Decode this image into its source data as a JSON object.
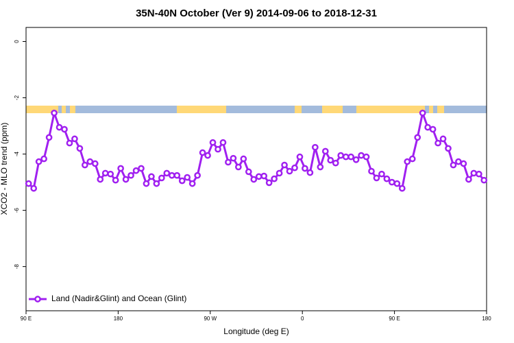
{
  "chart_data": {
    "type": "line",
    "title": "35N-40N October (Ver 9)   2014-09-06 to 2018-12-31",
    "xlabel": "Longitude (deg E)",
    "ylabel": "XCO2 - MLO trend (ppm)",
    "x": [
      92.5,
      97.5,
      102.5,
      107.5,
      112.5,
      117.5,
      122.5,
      127.5,
      132.5,
      137.5,
      142.5,
      147.5,
      152.5,
      157.5,
      162.5,
      167.5,
      172.5,
      177.5,
      182.5,
      187.5,
      192.5,
      197.5,
      202.5,
      207.5,
      212.5,
      217.5,
      222.5,
      227.5,
      232.5,
      237.5,
      242.5,
      247.5,
      252.5,
      257.5,
      262.5,
      267.5,
      272.5,
      277.5,
      282.5,
      287.5,
      292.5,
      297.5,
      302.5,
      307.5,
      312.5,
      317.5,
      322.5,
      327.5,
      332.5,
      337.5,
      342.5,
      347.5,
      352.5,
      357.5,
      362.5,
      367.5,
      372.5,
      377.5,
      382.5,
      387.5,
      392.5,
      397.5,
      402.5,
      407.5,
      412.5,
      417.5,
      422.5,
      427.5,
      432.5,
      437.5,
      442.5,
      447.5,
      452.5,
      457.5,
      462.5,
      467.5,
      472.5,
      477.5,
      482.5,
      487.5,
      492.5,
      497.5,
      502.5,
      507.5,
      512.5,
      517.5,
      522.5,
      527.5,
      532.5,
      537.5
    ],
    "series": [
      {
        "name": "Land (Nadir&Glint) and Ocean (Glint)",
        "color": "#a020f0",
        "values": [
          -5.05,
          -5.22,
          -4.27,
          -4.17,
          -3.41,
          -2.54,
          -3.05,
          -3.12,
          -3.61,
          -3.46,
          -3.8,
          -4.39,
          -4.27,
          -4.34,
          -4.9,
          -4.68,
          -4.71,
          -4.93,
          -4.51,
          -4.9,
          -4.76,
          -4.59,
          -4.51,
          -5.05,
          -4.8,
          -5.05,
          -4.85,
          -4.68,
          -4.76,
          -4.76,
          -4.95,
          -4.83,
          -5.05,
          -4.76,
          -3.95,
          -4.05,
          -3.59,
          -3.83,
          -3.59,
          -4.29,
          -4.15,
          -4.46,
          -4.17,
          -4.63,
          -4.9,
          -4.8,
          -4.78,
          -5.02,
          -4.88,
          -4.68,
          -4.39,
          -4.61,
          -4.49,
          -4.1,
          -4.51,
          -4.66,
          -3.76,
          -4.46,
          -3.9,
          -4.22,
          -4.32,
          -4.05,
          -4.1,
          -4.1,
          -4.2,
          -4.05,
          -4.1,
          -4.61,
          -4.85,
          -4.71,
          -4.88,
          -5.0,
          -5.05,
          -5.22,
          -4.27,
          -4.17,
          -3.41,
          -2.54,
          -3.05,
          -3.12,
          -3.61,
          -3.46,
          -3.8,
          -4.39,
          -4.27,
          -4.34,
          -4.9,
          -4.68,
          -4.71,
          -4.93
        ]
      }
    ],
    "xlim": [
      90,
      540
    ],
    "xticks": [
      {
        "value": 90,
        "label": "90 E"
      },
      {
        "value": 180,
        "label": "180"
      },
      {
        "value": 270,
        "label": "90 W"
      },
      {
        "value": 360,
        "label": "0"
      },
      {
        "value": 450,
        "label": "90 E"
      },
      {
        "value": 540,
        "label": "180"
      }
    ],
    "ylim": [
      -9.57,
      0.5
    ],
    "yticks": [
      0,
      -2,
      -4,
      -6,
      -8
    ],
    "legend": "bottom-left"
  }
}
